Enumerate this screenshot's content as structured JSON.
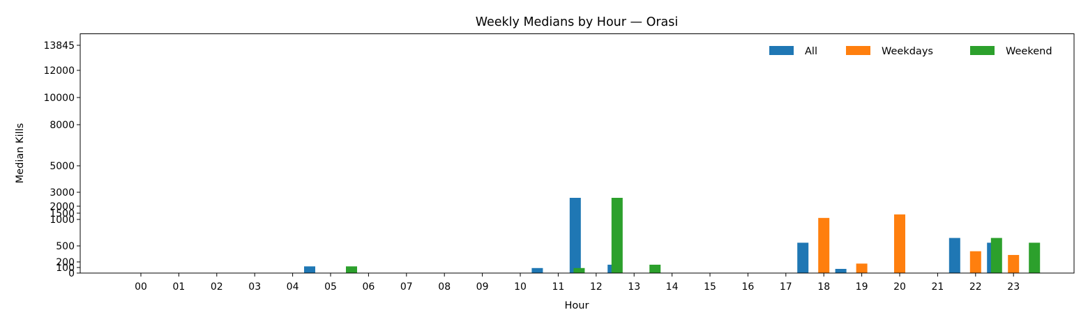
{
  "chart_data": {
    "type": "bar",
    "title": "Weekly Medians by Hour — Orasi",
    "xlabel": "Hour",
    "ylabel": "Median Kills",
    "y_scale": "non-linear (tick-label positions)",
    "y_ticks": [
      0,
      100,
      200,
      500,
      1000,
      1500,
      2000,
      3000,
      5000,
      8000,
      10000,
      12000,
      13845
    ],
    "y_tick_labels": [
      "0",
      "100",
      "200",
      "500",
      "1000",
      "1500",
      "2000",
      "3000",
      "5000",
      "8000",
      "10000",
      "12000",
      "13845"
    ],
    "categories": [
      "00",
      "01",
      "02",
      "03",
      "04",
      "05",
      "06",
      "07",
      "08",
      "09",
      "10",
      "11",
      "12",
      "13",
      "14",
      "15",
      "16",
      "17",
      "18",
      "19",
      "20",
      "21",
      "22",
      "23"
    ],
    "series": [
      {
        "name": "All",
        "color": "#1f77b4",
        "values": [
          0,
          0,
          0,
          0,
          0,
          120,
          0,
          0,
          0,
          0,
          0,
          90,
          2600,
          150,
          0,
          0,
          0,
          0,
          560,
          75,
          0,
          0,
          650,
          560
        ]
      },
      {
        "name": "Weekdays",
        "color": "#ff7f0e",
        "values": [
          0,
          0,
          0,
          0,
          0,
          0,
          0,
          0,
          0,
          0,
          0,
          0,
          0,
          0,
          0,
          0,
          0,
          0,
          1120,
          170,
          1400,
          0,
          400,
          330
        ]
      },
      {
        "name": "Weekend",
        "color": "#2ca02c",
        "values": [
          0,
          0,
          0,
          0,
          0,
          120,
          0,
          0,
          0,
          0,
          0,
          90,
          2600,
          150,
          0,
          0,
          0,
          0,
          0,
          0,
          0,
          0,
          650,
          560
        ]
      }
    ],
    "legend_position": "top-right",
    "grid": false
  }
}
